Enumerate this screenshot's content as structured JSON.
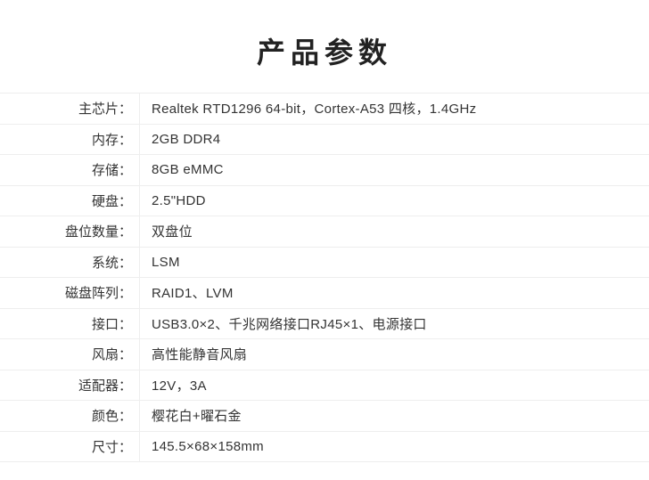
{
  "title": "产品参数",
  "colors": {
    "background": "#ffffff",
    "divider": "#eeeeee",
    "title_text": "#222222",
    "label_text": "#333333",
    "value_text": "#333333"
  },
  "spec_table": {
    "rows": [
      {
        "label": "主芯片：",
        "value": "Realtek RTD1296  64-bit，Cortex-A53 四核，1.4GHz"
      },
      {
        "label": "内存：",
        "value": "2GB DDR4"
      },
      {
        "label": "存储：",
        "value": "8GB eMMC"
      },
      {
        "label": "硬盘：",
        "value": "2.5\"HDD"
      },
      {
        "label": "盘位数量：",
        "value": "双盘位"
      },
      {
        "label": "系统：",
        "value": "LSM"
      },
      {
        "label": "磁盘阵列：",
        "value": "RAID1、LVM"
      },
      {
        "label": "接口：",
        "value": "USB3.0×2、千兆网络接口RJ45×1、电源接口"
      },
      {
        "label": "风扇：",
        "value": "高性能静音风扇"
      },
      {
        "label": "适配器：",
        "value": "12V，3A"
      },
      {
        "label": "颜色：",
        "value": "樱花白+曜石金"
      },
      {
        "label": "尺寸：",
        "value": "145.5×68×158mm"
      }
    ]
  }
}
